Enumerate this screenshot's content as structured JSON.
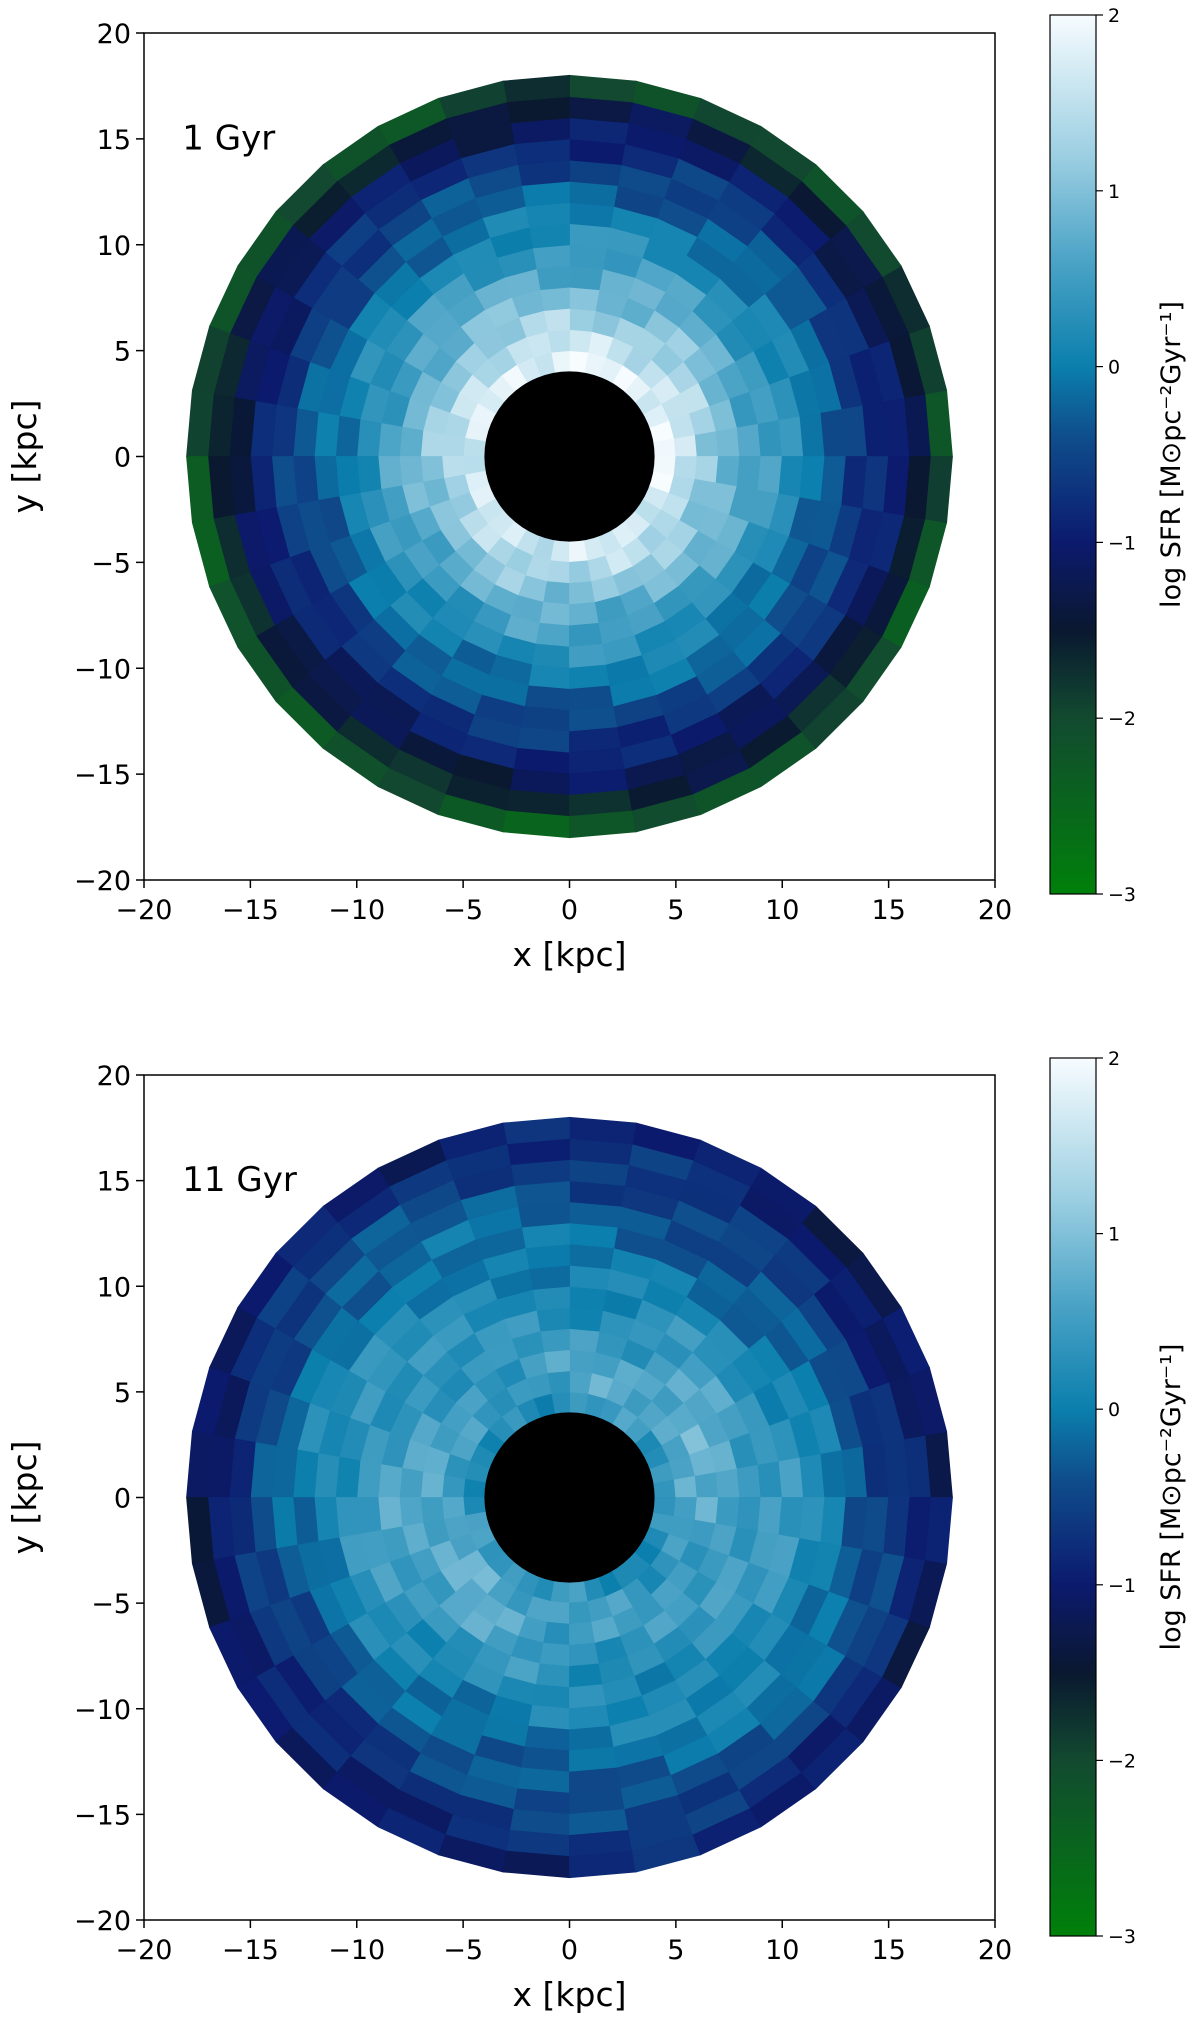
{
  "chart_data": [
    {
      "type": "heatmap",
      "annotation": "1 Gyr",
      "xlabel": "x [kpc]",
      "ylabel": "y [kpc]",
      "xlim": [
        -20,
        20
      ],
      "ylim": [
        -20,
        20
      ],
      "xticks": [
        "−20",
        "−15",
        "−10",
        "−5",
        "0",
        "5",
        "10",
        "15",
        "20"
      ],
      "yticks": [
        "−20",
        "−15",
        "−10",
        "−5",
        "0",
        "5",
        "10",
        "15",
        "20"
      ],
      "grid": false,
      "disk": {
        "r_inner_kpc": 4,
        "r_outer_kpc": 18,
        "n_rings": 14,
        "n_sectors": 36,
        "ring_log_sfr": [
          1.75,
          1.45,
          1.15,
          0.85,
          0.6,
          0.35,
          0.1,
          -0.1,
          -0.35,
          -0.6,
          -0.85,
          -1.15,
          -1.5,
          -2.1
        ],
        "hole_color": "#000000"
      },
      "colorbar": {
        "label": "log  SFR  [M⊙pc⁻²Gyr⁻¹]",
        "range": [
          -3,
          2
        ],
        "ticks": [
          "−3",
          "−2",
          "−1",
          "0",
          "1",
          "2"
        ]
      }
    },
    {
      "type": "heatmap",
      "annotation": "11 Gyr",
      "xlabel": "x [kpc]",
      "ylabel": "y [kpc]",
      "xlim": [
        -20,
        20
      ],
      "ylim": [
        -20,
        20
      ],
      "xticks": [
        "−20",
        "−15",
        "−10",
        "−5",
        "0",
        "5",
        "10",
        "15",
        "20"
      ],
      "yticks": [
        "−20",
        "−15",
        "−10",
        "−5",
        "0",
        "5",
        "10",
        "15",
        "20"
      ],
      "grid": false,
      "disk": {
        "r_inner_kpc": 4,
        "r_outer_kpc": 18,
        "n_rings": 14,
        "n_sectors": 36,
        "ring_log_sfr": [
          0.3,
          0.55,
          0.6,
          0.5,
          0.4,
          0.3,
          0.2,
          0.05,
          -0.1,
          -0.25,
          -0.45,
          -0.65,
          -0.85,
          -1.05
        ],
        "hole_color": "#000000"
      },
      "colorbar": {
        "label": "log  SFR  [M⊙pc⁻²Gyr⁻¹]",
        "range": [
          -3,
          2
        ],
        "ticks": [
          "−3",
          "−2",
          "−1",
          "0",
          "1",
          "2"
        ]
      }
    }
  ],
  "colormap_stops": [
    {
      "value": -3.0,
      "color": "#00800a"
    },
    {
      "value": -2.0,
      "color": "#124a30"
    },
    {
      "value": -1.5,
      "color": "#0a1830"
    },
    {
      "value": -1.0,
      "color": "#0c1a6e"
    },
    {
      "value": -0.4,
      "color": "#0f4d8c"
    },
    {
      "value": 0.0,
      "color": "#0b7fad"
    },
    {
      "value": 0.6,
      "color": "#4ba3c6"
    },
    {
      "value": 1.2,
      "color": "#9ccfe2"
    },
    {
      "value": 2.0,
      "color": "#f7fcff"
    }
  ]
}
